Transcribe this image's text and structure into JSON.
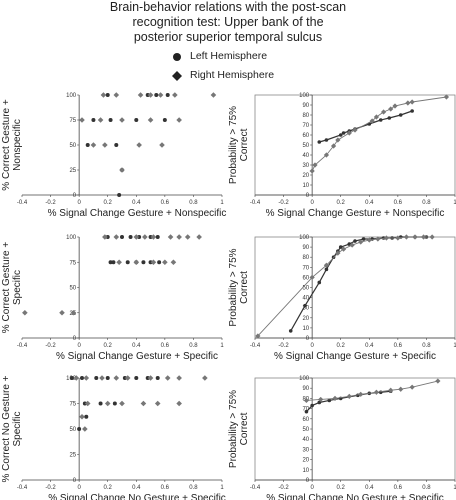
{
  "title_lines": [
    "Brain-behavior relations with the post-scan",
    "recognition test: Upper bank of the",
    "posterior superior temporal sulcus"
  ],
  "legend": [
    {
      "label": "Left Hemisphere",
      "marker": "circle"
    },
    {
      "label": "Right Hemisphere",
      "marker": "diamond"
    }
  ],
  "colors": {
    "left": "#333333",
    "right": "#777777",
    "axis": "#444444"
  },
  "chart_data": [
    {
      "type": "scatter",
      "panel": "row1-scatter",
      "xlabel": "% Signal Change Gesture + Nonspecific",
      "ylabel": [
        "% Correct Gesture +",
        "Nonspecific"
      ],
      "xlim": [
        -0.4,
        1
      ],
      "ylim": [
        0,
        100
      ],
      "xticks": [
        "-0.4",
        "-0.2",
        "0",
        "0.2",
        "0.4",
        "0.6",
        "0.8",
        "1"
      ],
      "yticks": [
        "0",
        "25",
        "50",
        "75",
        "100"
      ],
      "series": [
        {
          "marker": "circle",
          "points": [
            [
              0.2,
              100
            ],
            [
              0.48,
              100
            ],
            [
              0.54,
              100
            ],
            [
              0.62,
              100
            ],
            [
              0.1,
              75
            ],
            [
              0.22,
              75
            ],
            [
              0.4,
              75
            ],
            [
              0.6,
              75
            ],
            [
              0.06,
              50
            ],
            [
              0.26,
              50
            ],
            [
              0.3,
              25
            ],
            [
              0.28,
              0
            ]
          ]
        },
        {
          "marker": "diamond",
          "points": [
            [
              0.17,
              100
            ],
            [
              0.26,
              100
            ],
            [
              0.43,
              100
            ],
            [
              0.5,
              100
            ],
            [
              0.57,
              100
            ],
            [
              0.67,
              100
            ],
            [
              0.94,
              100
            ],
            [
              0.02,
              75
            ],
            [
              0.15,
              75
            ],
            [
              0.3,
              75
            ],
            [
              0.5,
              75
            ],
            [
              0.7,
              75
            ],
            [
              0.1,
              50
            ],
            [
              0.18,
              50
            ],
            [
              0.42,
              50
            ],
            [
              0.58,
              50
            ],
            [
              0.3,
              25
            ]
          ]
        }
      ]
    },
    {
      "type": "line",
      "panel": "row1-probability",
      "xlabel": "% Signal Change Gesture + Nonspecific",
      "ylabel": [
        "Probability > 75%",
        "Correct"
      ],
      "xlim": [
        -0.4,
        1
      ],
      "ylim": [
        0,
        100
      ],
      "xticks": [
        "-0.4",
        "-0.2",
        "0",
        "0.2",
        "0.4",
        "0.6",
        "0.8",
        "1"
      ],
      "yticks": [
        "0",
        "10",
        "20",
        "30",
        "40",
        "50",
        "60",
        "70",
        "80",
        "90",
        "100"
      ],
      "series": [
        {
          "marker": "circle",
          "points": [
            [
              0.05,
              53
            ],
            [
              0.1,
              55
            ],
            [
              0.2,
              60
            ],
            [
              0.22,
              62
            ],
            [
              0.26,
              64
            ],
            [
              0.3,
              66
            ],
            [
              0.4,
              71
            ],
            [
              0.48,
              75
            ],
            [
              0.54,
              77
            ],
            [
              0.62,
              80
            ],
            [
              0.7,
              84
            ]
          ]
        },
        {
          "marker": "diamond",
          "points": [
            [
              0,
              24
            ],
            [
              0.02,
              30
            ],
            [
              0.1,
              40
            ],
            [
              0.15,
              49
            ],
            [
              0.18,
              55
            ],
            [
              0.26,
              62
            ],
            [
              0.3,
              65
            ],
            [
              0.42,
              74
            ],
            [
              0.45,
              78
            ],
            [
              0.5,
              83
            ],
            [
              0.55,
              86
            ],
            [
              0.58,
              89
            ],
            [
              0.67,
              92
            ],
            [
              0.7,
              93
            ],
            [
              0.94,
              98
            ]
          ]
        }
      ]
    },
    {
      "type": "scatter",
      "panel": "row2-scatter",
      "xlabel": "% Signal Change Gesture + Specific",
      "ylabel": [
        "% Correct Gesture +",
        "Specific"
      ],
      "xlim": [
        -0.4,
        1
      ],
      "ylim": [
        0,
        100
      ],
      "xticks": [
        "-0.4",
        "-0.2",
        "0",
        "0.2",
        "0.4",
        "0.6",
        "0.8",
        "1"
      ],
      "yticks": [
        "0",
        "25",
        "50",
        "75",
        "100"
      ],
      "series": [
        {
          "marker": "circle",
          "points": [
            [
              0.2,
              100
            ],
            [
              0.3,
              100
            ],
            [
              0.36,
              100
            ],
            [
              0.42,
              100
            ],
            [
              0.5,
              100
            ],
            [
              0.55,
              100
            ],
            [
              0.22,
              75
            ],
            [
              0.24,
              75
            ],
            [
              0.34,
              75
            ],
            [
              0.4,
              75
            ],
            [
              0.45,
              75
            ],
            [
              0.5,
              75
            ],
            [
              0.56,
              75
            ]
          ]
        },
        {
          "marker": "diamond",
          "points": [
            [
              -0.38,
              25
            ],
            [
              -0.12,
              25
            ],
            [
              -0.04,
              25
            ],
            [
              0.18,
              100
            ],
            [
              0.26,
              100
            ],
            [
              0.4,
              100
            ],
            [
              0.46,
              100
            ],
            [
              0.52,
              100
            ],
            [
              0.64,
              100
            ],
            [
              0.7,
              100
            ],
            [
              0.76,
              100
            ],
            [
              0.84,
              100
            ],
            [
              0.28,
              75
            ],
            [
              0.4,
              75
            ],
            [
              0.52,
              75
            ],
            [
              0.6,
              75
            ],
            [
              0.66,
              75
            ]
          ]
        }
      ]
    },
    {
      "type": "line",
      "panel": "row2-probability",
      "xlabel": "% Signal Change Gesture + Specific",
      "ylabel": [
        "Probability > 75%",
        "Correct"
      ],
      "xlim": [
        -0.4,
        1
      ],
      "ylim": [
        0,
        100
      ],
      "xticks": [
        "-0.4",
        "-0.2",
        "0",
        "0.2",
        "0.4",
        "0.6",
        "0.8",
        "1"
      ],
      "yticks": [
        "0",
        "10",
        "20",
        "30",
        "40",
        "50",
        "60",
        "70",
        "80",
        "90",
        "100"
      ],
      "series": [
        {
          "marker": "circle",
          "points": [
            [
              -0.15,
              7
            ],
            [
              -0.05,
              32
            ],
            [
              0.05,
              55
            ],
            [
              0.1,
              68
            ],
            [
              0.15,
              80
            ],
            [
              0.18,
              86
            ],
            [
              0.2,
              90
            ],
            [
              0.26,
              93
            ],
            [
              0.3,
              96
            ],
            [
              0.36,
              98
            ],
            [
              0.42,
              98
            ],
            [
              0.5,
              99
            ],
            [
              0.56,
              99
            ],
            [
              0.62,
              100
            ],
            [
              0.72,
              100
            ],
            [
              0.8,
              100
            ]
          ]
        },
        {
          "marker": "diamond",
          "points": [
            [
              -0.38,
              2
            ],
            [
              0,
              60
            ],
            [
              0.1,
              72
            ],
            [
              0.18,
              84
            ],
            [
              0.22,
              88
            ],
            [
              0.28,
              92
            ],
            [
              0.34,
              95
            ],
            [
              0.4,
              97
            ],
            [
              0.46,
              98
            ],
            [
              0.52,
              99
            ],
            [
              0.6,
              99
            ],
            [
              0.66,
              100
            ],
            [
              0.72,
              100
            ],
            [
              0.78,
              100
            ],
            [
              0.84,
              100
            ]
          ]
        }
      ]
    },
    {
      "type": "scatter",
      "panel": "row3-scatter",
      "xlabel": "% Signal Change No Gesture + Specific",
      "ylabel": [
        "% Correct No Gesture +",
        "Specific"
      ],
      "xlim": [
        -0.4,
        1
      ],
      "ylim": [
        0,
        100
      ],
      "xticks": [
        "-0.4",
        "-0.2",
        "0",
        "0.2",
        "0.4",
        "0.6",
        "0.8",
        "1"
      ],
      "yticks": [
        "0",
        "25",
        "50",
        "75",
        "100"
      ],
      "series": [
        {
          "marker": "circle",
          "points": [
            [
              -0.05,
              100
            ],
            [
              0.02,
              100
            ],
            [
              0.12,
              100
            ],
            [
              0.2,
              100
            ],
            [
              0.32,
              100
            ],
            [
              0.4,
              100
            ],
            [
              0.48,
              100
            ],
            [
              0.55,
              100
            ],
            [
              0.04,
              75
            ],
            [
              0.15,
              75
            ],
            [
              0.25,
              75
            ],
            [
              0.05,
              62
            ],
            [
              0.0,
              50
            ]
          ]
        },
        {
          "marker": "diamond",
          "points": [
            [
              -0.02,
              100
            ],
            [
              0.05,
              100
            ],
            [
              0.16,
              100
            ],
            [
              0.26,
              100
            ],
            [
              0.34,
              100
            ],
            [
              0.5,
              100
            ],
            [
              0.62,
              100
            ],
            [
              0.7,
              100
            ],
            [
              0.88,
              100
            ],
            [
              0.06,
              75
            ],
            [
              0.2,
              75
            ],
            [
              0.3,
              75
            ],
            [
              0.45,
              75
            ],
            [
              0.55,
              75
            ],
            [
              0.7,
              75
            ],
            [
              0.02,
              62
            ],
            [
              0.04,
              50
            ]
          ]
        }
      ]
    },
    {
      "type": "line",
      "panel": "row3-probability",
      "xlabel": "% Signal Change No Gesture + Specific",
      "ylabel": [
        "Probability > 75%",
        "Correct"
      ],
      "xlim": [
        -0.4,
        1
      ],
      "ylim": [
        0,
        100
      ],
      "xticks": [
        "-0.4",
        "-0.2",
        "0",
        "0.2",
        "0.4",
        "0.6",
        "0.8",
        "1"
      ],
      "yticks": [
        "0",
        "10",
        "20",
        "30",
        "40",
        "50",
        "60",
        "70",
        "80",
        "90",
        "100"
      ],
      "series": [
        {
          "marker": "circle",
          "points": [
            [
              -0.04,
              67
            ],
            [
              0.0,
              73
            ],
            [
              0.05,
              76
            ],
            [
              0.12,
              78
            ],
            [
              0.2,
              80
            ],
            [
              0.32,
              83
            ],
            [
              0.4,
              85
            ],
            [
              0.48,
              86
            ],
            [
              0.55,
              87
            ]
          ]
        },
        {
          "marker": "diamond",
          "points": [
            [
              -0.04,
              78
            ],
            [
              0.06,
              79
            ],
            [
              0.16,
              80
            ],
            [
              0.26,
              82
            ],
            [
              0.34,
              84
            ],
            [
              0.45,
              86
            ],
            [
              0.55,
              88
            ],
            [
              0.62,
              89
            ],
            [
              0.7,
              91
            ],
            [
              0.88,
              97
            ]
          ]
        }
      ]
    }
  ]
}
